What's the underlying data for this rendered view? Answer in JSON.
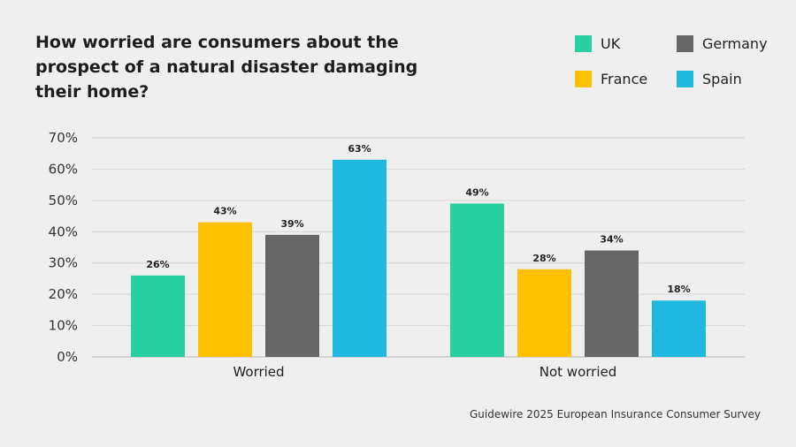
{
  "title": "How worried are consumers about the prospect of a natural disaster damaging their home?",
  "source": "Guidewire 2025 European Insurance Consumer Survey",
  "chart_data": {
    "type": "bar",
    "title": "How worried are consumers about the prospect of a natural disaster damaging their home?",
    "xlabel": "",
    "ylabel": "",
    "categories": [
      "Worried",
      "Not worried"
    ],
    "series": [
      {
        "name": "UK",
        "color": "#2bd0a0",
        "values": [
          26,
          49
        ]
      },
      {
        "name": "France",
        "color": "#ffc000",
        "values": [
          43,
          28
        ]
      },
      {
        "name": "Germany",
        "color": "#666666",
        "values": [
          39,
          34
        ]
      },
      {
        "name": "Spain",
        "color": "#21b8e0",
        "values": [
          63,
          18
        ]
      }
    ],
    "ylim": [
      0,
      70
    ],
    "yticks": [
      0,
      10,
      20,
      30,
      40,
      50,
      60,
      70
    ],
    "ytick_labels": [
      "0%",
      "10%",
      "20%",
      "30%",
      "40%",
      "50%",
      "60%",
      "70%"
    ],
    "value_suffix": "%",
    "grid": true,
    "legend_position": "top-right"
  }
}
